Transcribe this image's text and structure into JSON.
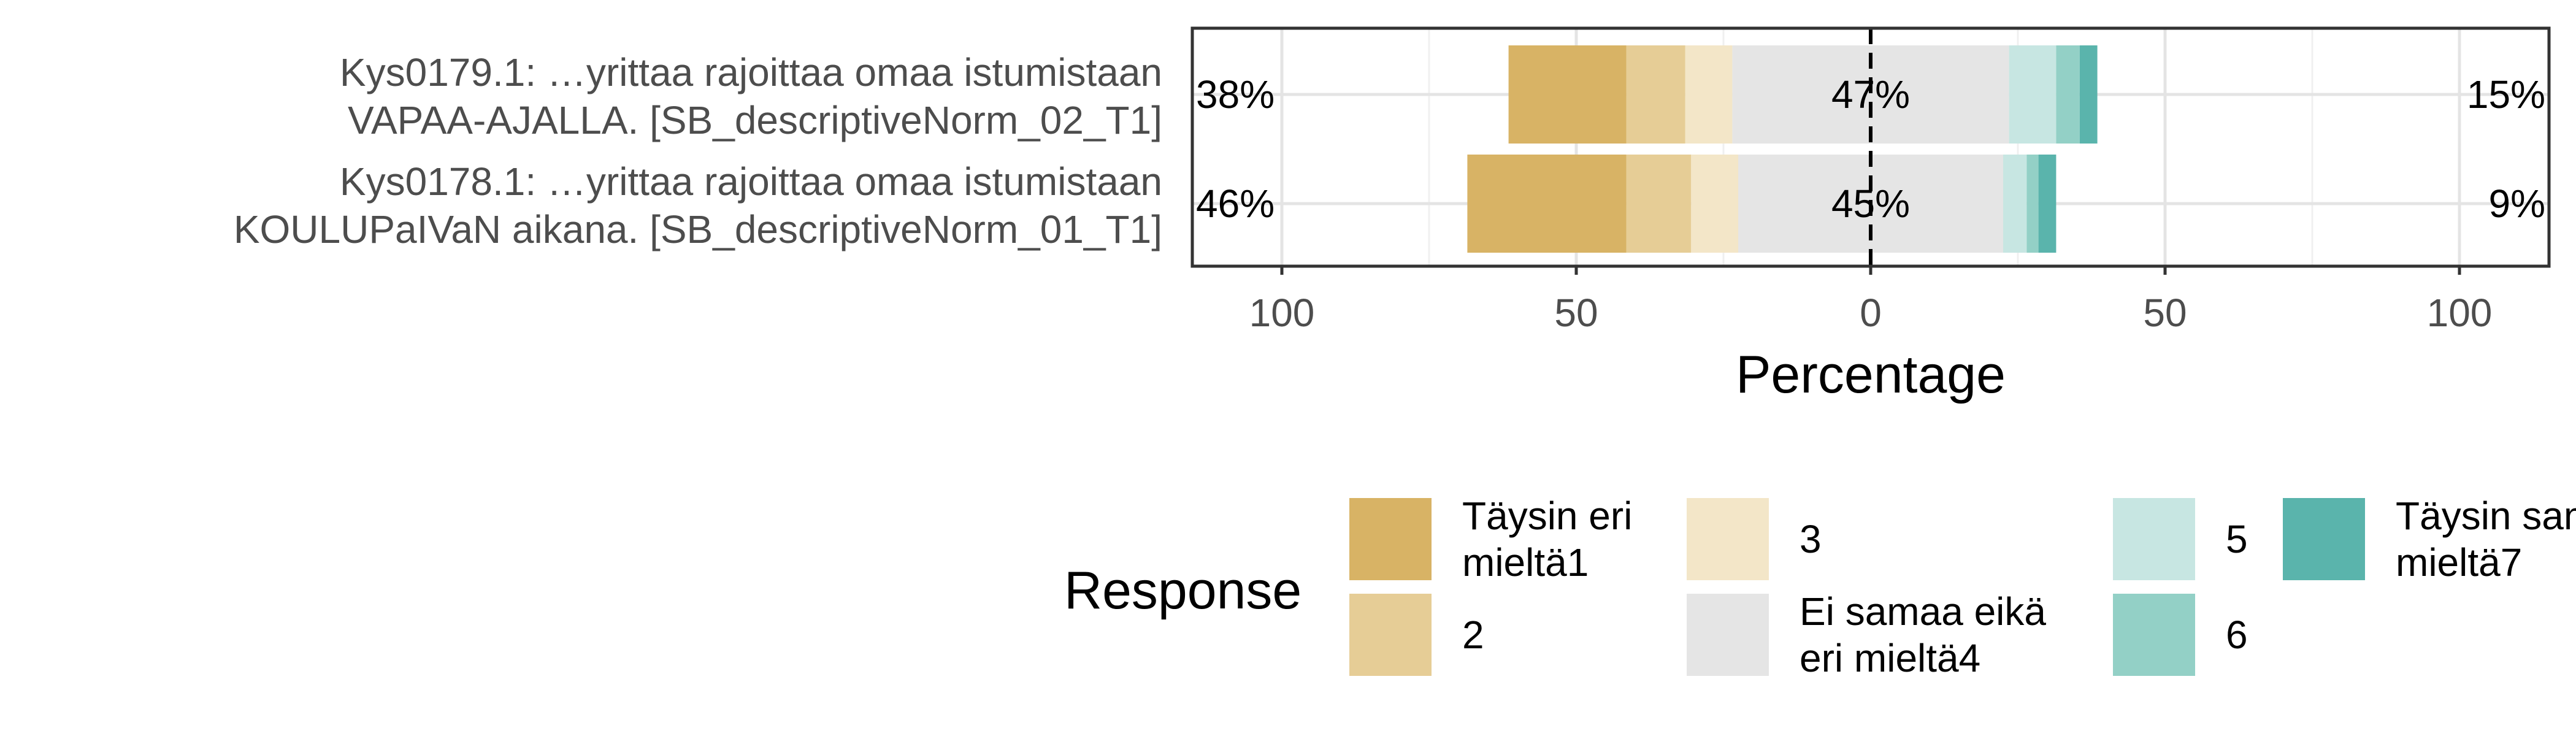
{
  "chart_data": {
    "type": "bar",
    "orientation": "horizontal",
    "stacking": "diverging",
    "xlabel": "Percentage",
    "x_tick_labels": [
      "100",
      "50",
      "0",
      "50",
      "100"
    ],
    "x_ticks": [
      -100,
      -50,
      0,
      50,
      100
    ],
    "xlim": [
      -100,
      100
    ],
    "grid": true,
    "legend_title": "Response",
    "legend_position": "bottom",
    "categories": [
      [
        "Kys0179.1: …yrittaa rajoittaa omaa istumistaan",
        "VAPAA-AJALLA. [SB_descriptiveNorm_02_T1]"
      ],
      [
        "Kys0178.1: …yrittaa rajoittaa omaa istumistaan",
        "KOULUPaIVaN aikana. [SB_descriptiveNorm_01_T1]"
      ]
    ],
    "series": [
      {
        "name": [
          "Täysin eri",
          "mieltä1"
        ],
        "color": "#D8B365",
        "values": [
          20,
          27
        ]
      },
      {
        "name": [
          "2"
        ],
        "color": "#E6CD96",
        "values": [
          10,
          11
        ]
      },
      {
        "name": [
          "3"
        ],
        "color": "#F3E6C8",
        "values": [
          8,
          8
        ]
      },
      {
        "name": [
          "Ei samaa eikä",
          "eri mieltä4"
        ],
        "color": "#E5E5E5",
        "values": [
          47,
          45
        ]
      },
      {
        "name": [
          "5"
        ],
        "color": "#C7E6E2",
        "values": [
          8,
          4
        ]
      },
      {
        "name": [
          "6"
        ],
        "color": "#93D0C6",
        "values": [
          4,
          2
        ]
      },
      {
        "name": [
          "Täysin samaa",
          "mieltä7"
        ],
        "color": "#5AB4AC",
        "values": [
          3,
          3
        ]
      }
    ],
    "neutral_index": 3,
    "summary_labels": [
      {
        "low": "38%",
        "neutral": "47%",
        "high": "15%"
      },
      {
        "low": "46%",
        "neutral": "45%",
        "high": "9%"
      }
    ]
  }
}
